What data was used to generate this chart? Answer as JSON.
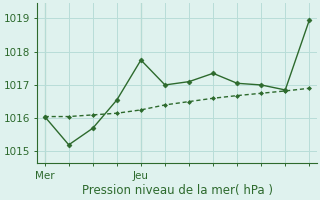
{
  "line1_x": [
    0,
    1,
    2,
    3,
    4,
    5,
    6,
    7,
    8,
    9,
    10,
    11
  ],
  "line1_y": [
    1016.05,
    1016.05,
    1016.1,
    1016.15,
    1016.25,
    1016.4,
    1016.5,
    1016.6,
    1016.68,
    1016.75,
    1016.82,
    1016.9
  ],
  "line2_x": [
    0,
    1,
    2,
    3,
    4,
    5,
    6,
    7,
    8,
    9,
    10,
    11
  ],
  "line2_y": [
    1016.05,
    1015.2,
    1015.7,
    1016.55,
    1017.75,
    1017.0,
    1017.1,
    1017.35,
    1017.05,
    1017.0,
    1016.85,
    1018.95
  ],
  "mer_x": 0,
  "jeu_x": 4,
  "xtick_positions": [
    0,
    1,
    2,
    3,
    4,
    5,
    6,
    7,
    8,
    9,
    10,
    11
  ],
  "xtick_labels_named": {
    "0": "Mer",
    "4": "Jeu"
  },
  "ytick_positions": [
    1015,
    1016,
    1017,
    1018,
    1019
  ],
  "ylim": [
    1014.65,
    1019.45
  ],
  "xlim": [
    -0.3,
    11.3
  ],
  "line_color": "#2d6a2d",
  "bg_color": "#dff2ee",
  "grid_color": "#b8ddd8",
  "xlabel": "Pression niveau de la mer( hPa )",
  "xlabel_color": "#2d6a2d",
  "xlabel_fontsize": 8.5,
  "tick_fontsize": 7.5
}
